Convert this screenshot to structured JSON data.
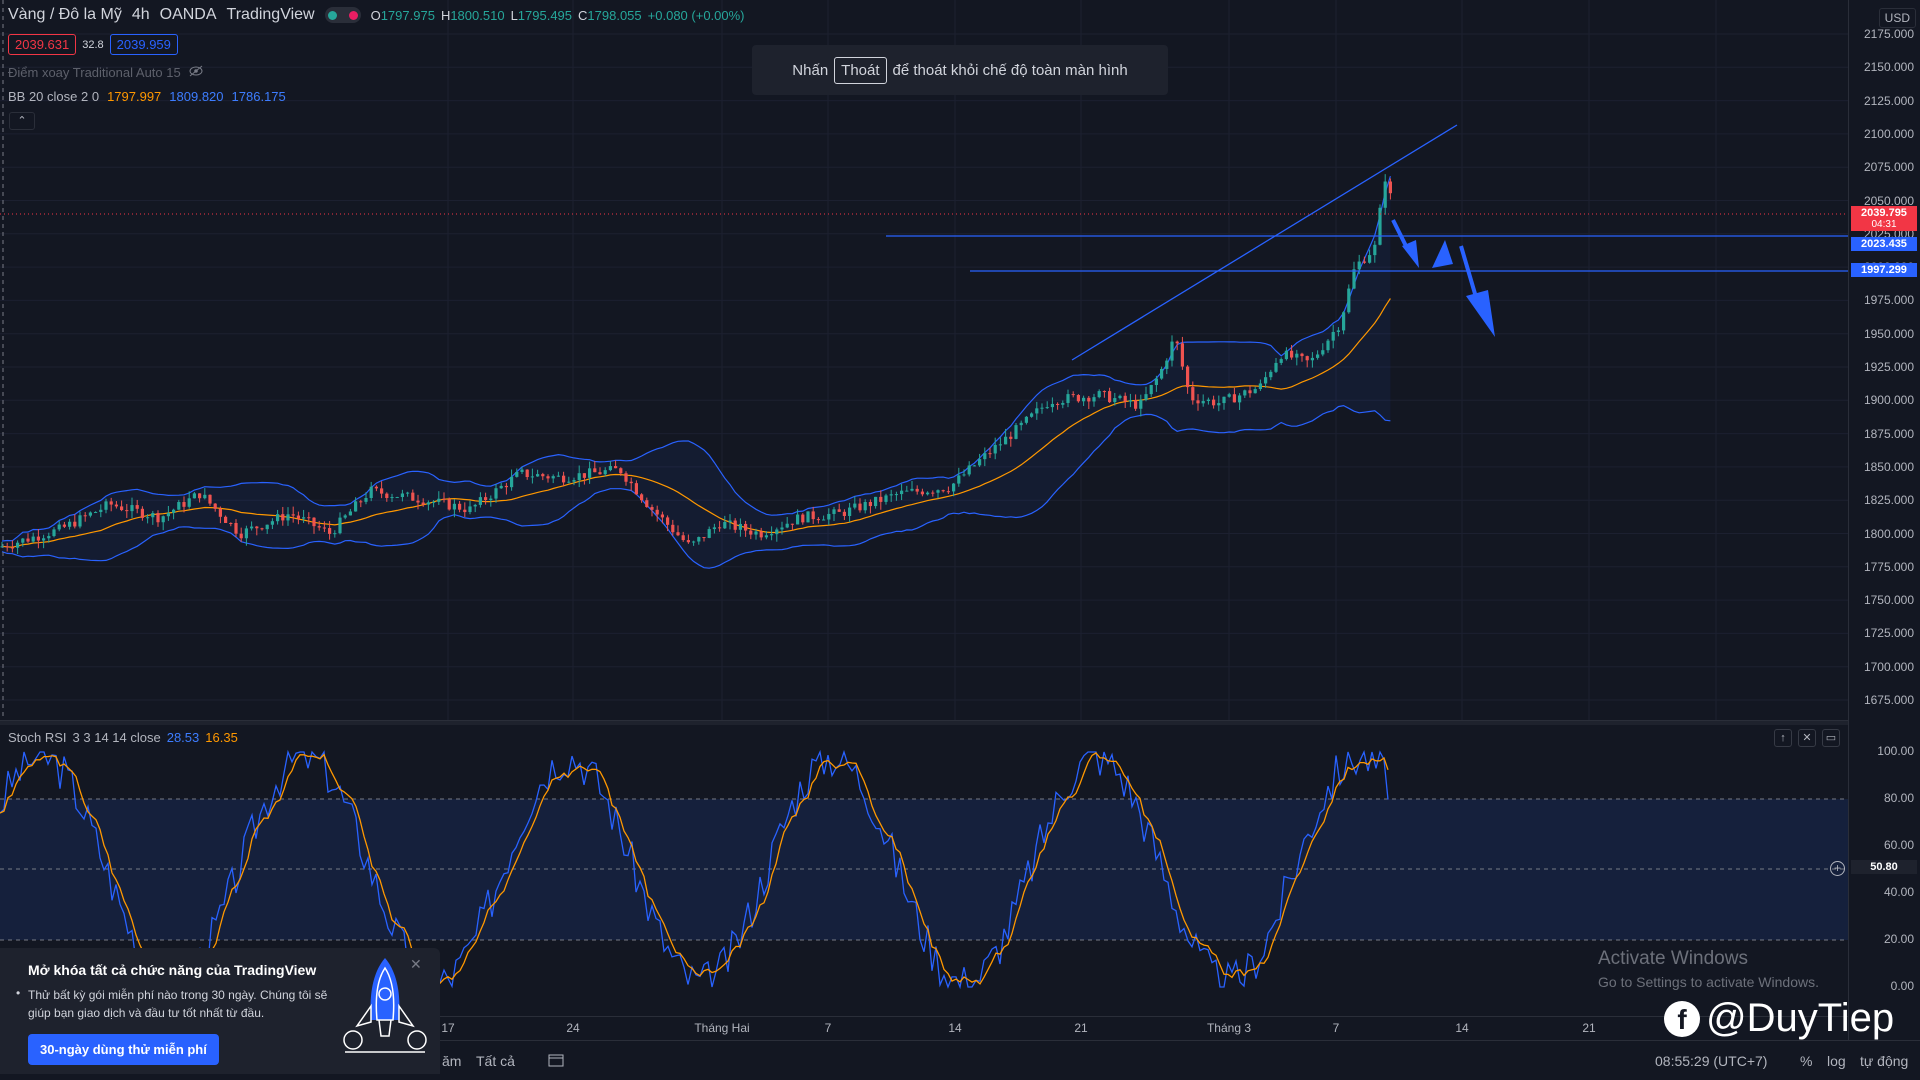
{
  "header": {
    "title": "Vàng / Đô la Mỹ",
    "interval": "4h",
    "broker": "OANDA",
    "source": "TradingView",
    "ohlc": {
      "o_label": "O",
      "o": "1797.975",
      "h_label": "H",
      "h": "1800.510",
      "l_label": "L",
      "l": "1795.495",
      "c_label": "C",
      "c": "1798.055",
      "change": "+0.080 (+0.00%)"
    }
  },
  "quote": {
    "sell": "2039.631",
    "spread": "32.8",
    "buy": "2039.959"
  },
  "indicators": {
    "pivot_label": "Điểm xoay Traditional Auto 15",
    "bb_label": "BB 20 close 2 0",
    "bb_basis": "1797.997",
    "bb_upper": "1809.820",
    "bb_lower": "1786.175"
  },
  "exit_banner": {
    "prefix": "Nhấn",
    "key": "Thoát",
    "suffix": "để thoát khỏi chế độ toàn màn hình"
  },
  "price_axis": {
    "currency": "USD",
    "ticks": [
      "2175.000",
      "2150.000",
      "2125.000",
      "2100.000",
      "2075.000",
      "2050.000",
      "2025.000",
      "2000.000",
      "1975.000",
      "1950.000",
      "1925.000",
      "1900.000",
      "1875.000",
      "1850.000",
      "1825.000",
      "1800.000",
      "1775.000",
      "1750.000",
      "1725.000",
      "1700.000",
      "1675.000"
    ],
    "current_price": "2039.795",
    "countdown": "04:31",
    "hline_1": "2023.435",
    "hline_2": "1997.299"
  },
  "stoch": {
    "label": "Stoch RSI",
    "params": "3 3 14 14 close",
    "k": "28.53",
    "d": "16.35",
    "ticks": [
      "100.00",
      "80.00",
      "60.00",
      "40.00",
      "20.00",
      "0.00"
    ],
    "current": "50.80"
  },
  "time_axis": [
    "17",
    "24",
    "Tháng Hai",
    "7",
    "14",
    "21",
    "Tháng 3",
    "7",
    "14",
    "21"
  ],
  "bottom_bar": {
    "range_partial": "ăm",
    "all": "Tất cả",
    "clock": "08:55:29 (UTC+7)",
    "percent": "%",
    "log": "log",
    "auto": "tự động"
  },
  "activate": {
    "title": "Activate Windows",
    "subtitle": "Go to Settings to activate Windows."
  },
  "watermark": {
    "icon_letter": "f",
    "text": "@DuyTiep"
  },
  "promo": {
    "title": "Mở khóa tất cả chức năng của TradingView",
    "body": "Thử bất kỳ gói miễn phí nào trong 30 ngày. Chúng tôi sẽ giúp bạn giao dịch và đầu tư tốt nhất từ đầu.",
    "cta": "30-ngày dùng thử miễn phí"
  },
  "colors": {
    "bg": "#131722",
    "up": "#26a69a",
    "down": "#ef5350",
    "bb_basis": "#ff9800",
    "bb_band": "#2962ff",
    "annotation": "#2962ff"
  }
}
